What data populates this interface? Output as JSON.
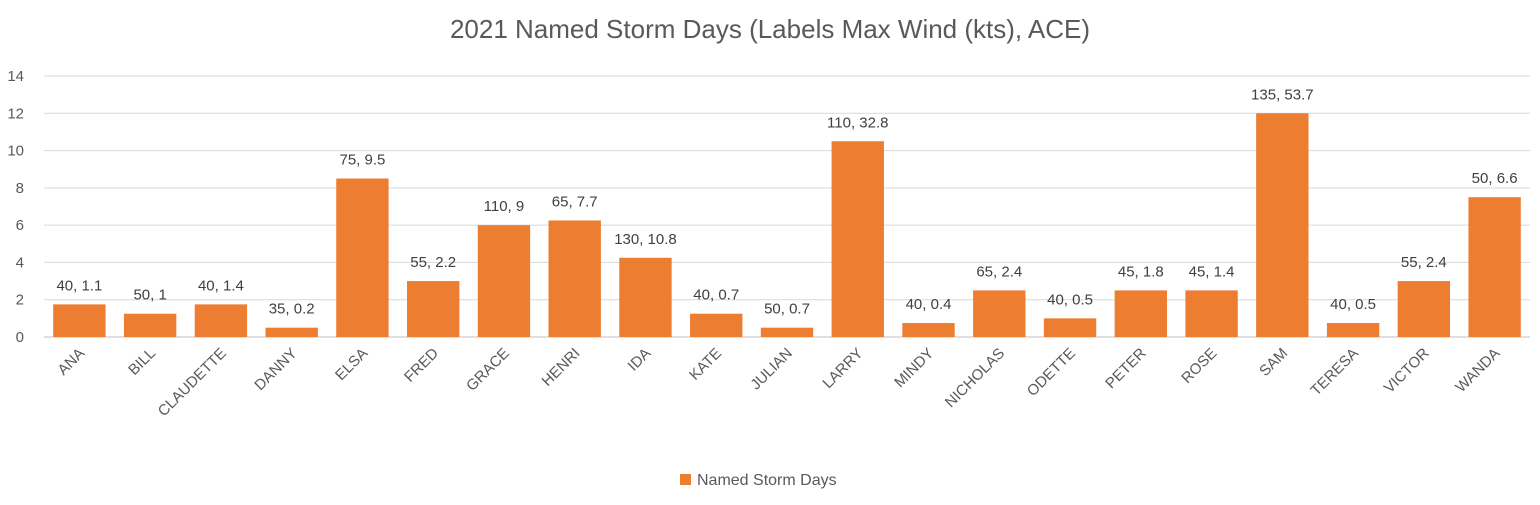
{
  "chart_data": {
    "type": "bar",
    "title": "2021 Named Storm Days  (Labels Max Wind (kts), ACE)",
    "xlabel": "",
    "ylabel": "",
    "ylim": [
      0,
      14
    ],
    "yticks": [
      "0",
      "2",
      "4",
      "6",
      "8",
      "10",
      "12",
      "14"
    ],
    "grid": true,
    "legend_position": "bottom",
    "bar_color": "#ED7D31",
    "categories": [
      "ANA",
      "BILL",
      "CLAUDETTE",
      "DANNY",
      "ELSA",
      "FRED",
      "GRACE",
      "HENRI",
      "IDA",
      "KATE",
      "JULIAN",
      "LARRY",
      "MINDY",
      "NICHOLAS",
      "ODETTE",
      "PETER",
      "ROSE",
      "SAM",
      "TERESA",
      "VICTOR",
      "WANDA"
    ],
    "series": [
      {
        "name": "Named Storm Days",
        "values": [
          1.75,
          1.25,
          1.75,
          0.5,
          8.5,
          3.0,
          6.0,
          6.25,
          4.25,
          1.25,
          0.5,
          10.5,
          0.75,
          2.5,
          1.0,
          2.5,
          2.5,
          12.0,
          0.75,
          3.0,
          7.5
        ],
        "data_labels": [
          "40, 1.1",
          "50, 1",
          "40, 1.4",
          "35, 0.2",
          "75, 9.5",
          "55, 2.2",
          "110, 9",
          "65, 7.7",
          "130, 10.8",
          "40, 0.7",
          "50, 0.7",
          "110, 32.8",
          "40, 0.4",
          "65, 2.4",
          "40, 0.5",
          "45, 1.8",
          "45, 1.4",
          "135, 53.7",
          "40, 0.5",
          "55, 2.4",
          "50, 6.6"
        ]
      }
    ]
  }
}
